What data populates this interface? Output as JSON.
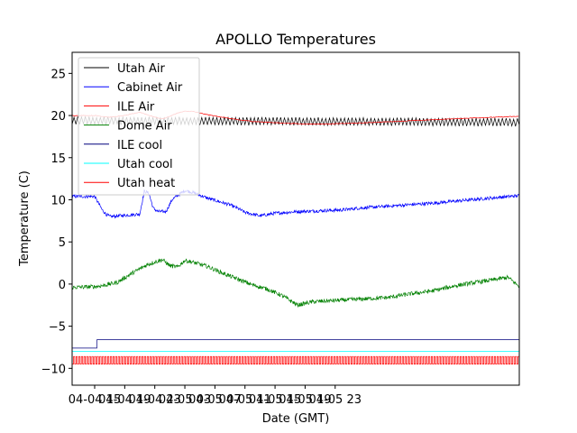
{
  "chart_data": {
    "type": "line",
    "title": "APOLLO Temperatures",
    "xlabel": "Date (GMT)",
    "ylabel": "Temperature (C)",
    "xlim_hours": [
      12.0,
      71.5
    ],
    "ylim": [
      -12,
      27.5
    ],
    "x_ticks": [
      {
        "label": "04-04 15",
        "hour": 15
      },
      {
        "label": "04-04 19",
        "hour": 19
      },
      {
        "label": "04-04 23",
        "hour": 23
      },
      {
        "label": "04-05 03",
        "hour": 27
      },
      {
        "label": "04-05 07",
        "hour": 31
      },
      {
        "label": "04-05 11",
        "hour": 35
      },
      {
        "label": "04-05 15",
        "hour": 39
      },
      {
        "label": "04-05 19",
        "hour": 43
      },
      {
        "label": "04-05 23",
        "hour": 47
      }
    ],
    "y_ticks": [
      25,
      20,
      15,
      10,
      5,
      0,
      -5,
      -10
    ],
    "legend_position": "upper-left",
    "series": [
      {
        "name": "Utah Air",
        "color": "#000000",
        "style": "oscillating",
        "x": [
          12,
          71.5
        ],
        "y": [
          19.4,
          19.2
        ],
        "amplitude": 0.5,
        "period_hours": 0.5
      },
      {
        "name": "Cabinet Air",
        "color": "#0000ff",
        "style": "noisy",
        "x": [
          12,
          15,
          16,
          16.5,
          17,
          19.5,
          21,
          21.6,
          22.2,
          22.8,
          23.4,
          24.5,
          25.3,
          26,
          27,
          28,
          30,
          33,
          34,
          35,
          37,
          39,
          42,
          45,
          48,
          50,
          55,
          60,
          65,
          71.5
        ],
        "y": [
          10.4,
          10.4,
          8.8,
          8.3,
          8.0,
          8.2,
          8.3,
          11.0,
          10.8,
          9.0,
          8.6,
          8.6,
          10.0,
          10.5,
          11.1,
          10.9,
          10.2,
          9.4,
          9.0,
          8.5,
          8.1,
          8.4,
          8.6,
          8.7,
          8.8,
          9.0,
          9.3,
          9.6,
          10.0,
          10.5
        ],
        "noise": 0.2
      },
      {
        "name": "ILE Air",
        "color": "#ff0000",
        "style": "smooth",
        "x": [
          12,
          15,
          17,
          18,
          19,
          20,
          21,
          22,
          23,
          24,
          25,
          26,
          27,
          28,
          29,
          30,
          32,
          34,
          36,
          38,
          40,
          43,
          46,
          50,
          55,
          60,
          65,
          71.5
        ],
        "y": [
          20.0,
          20.0,
          19.8,
          19.9,
          20.0,
          20.2,
          20.4,
          20.1,
          19.8,
          19.6,
          19.9,
          20.3,
          20.5,
          20.5,
          20.3,
          20.1,
          19.8,
          19.5,
          19.3,
          19.2,
          19.1,
          19.0,
          19.0,
          19.1,
          19.3,
          19.5,
          19.7,
          19.9
        ]
      },
      {
        "name": "Dome Air",
        "color": "#008000",
        "style": "noisy",
        "x": [
          12,
          15,
          16,
          18,
          20,
          22,
          23,
          24,
          25,
          26,
          27,
          28,
          30,
          32,
          34,
          36,
          38,
          40,
          42,
          44,
          46,
          48,
          50,
          52,
          54,
          56,
          60,
          63,
          65,
          68,
          70,
          71.5
        ],
        "y": [
          -0.4,
          -0.3,
          -0.2,
          0.2,
          1.3,
          2.3,
          2.6,
          2.9,
          2.2,
          2.0,
          2.8,
          2.6,
          2.1,
          1.3,
          0.6,
          -0.1,
          -0.6,
          -1.4,
          -2.5,
          -2.1,
          -2.0,
          -1.9,
          -1.8,
          -1.7,
          -1.6,
          -1.3,
          -0.8,
          -0.2,
          0.1,
          0.5,
          0.8,
          -0.3
        ],
        "noise": 0.25
      },
      {
        "name": "ILE cool",
        "color": "#00007f",
        "style": "step",
        "x": [
          12,
          15.3,
          15.3,
          71.5
        ],
        "y": [
          -7.6,
          -7.6,
          -6.6,
          -6.6
        ]
      },
      {
        "name": "Utah cool",
        "color": "#00ffff",
        "style": "flat",
        "x": [
          12,
          71.5
        ],
        "y": [
          -8.0,
          -8.0
        ]
      },
      {
        "name": "Utah heat",
        "color": "#ff0000",
        "style": "pulse",
        "x": [
          12,
          71.5
        ],
        "y_low": -9.5,
        "y_high": -8.6,
        "period_hours": 0.35
      }
    ]
  }
}
